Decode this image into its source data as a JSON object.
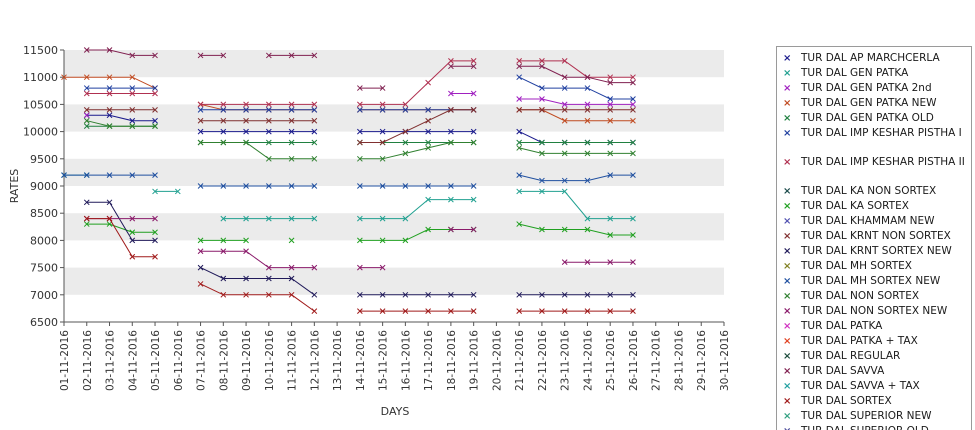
{
  "chart_data": {
    "type": "line",
    "title": "",
    "xlabel": "DAYS",
    "ylabel": "RATES",
    "ylim": [
      6500,
      11500
    ],
    "yticks": [
      "6500",
      "7000",
      "7500",
      "8000",
      "8500",
      "9000",
      "9500",
      "10000",
      "10500",
      "11000",
      "11500"
    ],
    "x": [
      "01-11-2016",
      "02-11-2016",
      "03-11-2016",
      "04-11-2016",
      "05-11-2016",
      "06-11-2016",
      "07-11-2016",
      "08-11-2016",
      "09-11-2016",
      "10-11-2016",
      "11-11-2016",
      "12-11-2016",
      "13-11-2016",
      "14-11-2016",
      "15-11-2016",
      "16-11-2016",
      "17-11-2016",
      "18-11-2016",
      "19-11-2016",
      "20-11-2016",
      "21-11-2016",
      "22-11-2016",
      "23-11-2016",
      "24-11-2016",
      "25-11-2016",
      "26-11-2016",
      "27-11-2016",
      "28-11-2016",
      "29-11-2016",
      "30-11-2016"
    ],
    "grid_bands": true,
    "legend_placement": "right",
    "series": [
      {
        "name": "TUR DAL AP MARCHCERLA",
        "color": "#1a1a8c",
        "values": [
          null,
          10300,
          10300,
          10200,
          10200,
          null,
          10000,
          10000,
          10000,
          10000,
          10000,
          10000,
          null,
          10000,
          10000,
          10000,
          10000,
          10000,
          10000,
          null,
          10000,
          9800,
          9800,
          9800,
          9800,
          9800,
          null,
          null,
          null,
          null
        ]
      },
      {
        "name": "TUR DAL GEN PATKA",
        "color": "#20a090",
        "values": [
          9200,
          9200,
          null,
          null,
          8900,
          8900,
          null,
          8400,
          8400,
          8400,
          8400,
          8400,
          null,
          8400,
          8400,
          8400,
          8750,
          8750,
          8750,
          null,
          8900,
          8900,
          8900,
          8400,
          8400,
          8400,
          null,
          null,
          null,
          null
        ]
      },
      {
        "name": "TUR DAL GEN PATKA 2nd",
        "color": "#a020c0",
        "values": [
          null,
          10300,
          null,
          null,
          null,
          null,
          null,
          null,
          null,
          null,
          null,
          null,
          null,
          null,
          null,
          null,
          null,
          10700,
          10700,
          null,
          10600,
          10600,
          10500,
          10500,
          10500,
          10500,
          null,
          null,
          null,
          null
        ]
      },
      {
        "name": "TUR DAL GEN PATKA NEW",
        "color": "#c04a20",
        "values": [
          11000,
          11000,
          11000,
          11000,
          10800,
          null,
          10500,
          10400,
          10400,
          10400,
          10400,
          10400,
          null,
          10400,
          10400,
          10400,
          10400,
          10400,
          10400,
          null,
          10400,
          10400,
          10200,
          10200,
          10200,
          10200,
          null,
          null,
          null,
          null
        ]
      },
      {
        "name": "TUR DAL GEN PATKA OLD",
        "color": "#208040",
        "values": [
          null,
          10100,
          10100,
          10100,
          10100,
          null,
          9800,
          9800,
          9800,
          9800,
          9800,
          9800,
          null,
          9800,
          9800,
          9800,
          9800,
          9800,
          9800,
          null,
          9800,
          9800,
          9800,
          9800,
          9800,
          9800,
          null,
          null,
          null,
          null
        ]
      },
      {
        "name": "TUR DAL IMP KESHAR PISTHA I",
        "color": "#2040a0",
        "values": [
          null,
          10800,
          10800,
          10800,
          10800,
          null,
          10400,
          10400,
          10400,
          10400,
          10400,
          10400,
          null,
          10400,
          10400,
          10400,
          10400,
          10400,
          10400,
          null,
          11000,
          10800,
          10800,
          10800,
          10600,
          10600,
          null,
          null,
          null,
          null
        ]
      },
      {
        "name": "TUR DAL IMP KESHAR PISTHA II",
        "color": "#b03050",
        "values": [
          null,
          10700,
          10700,
          10700,
          10700,
          null,
          10500,
          10500,
          10500,
          10500,
          10500,
          10500,
          null,
          10500,
          10500,
          10500,
          10900,
          11300,
          11300,
          null,
          11300,
          11300,
          11300,
          11000,
          11000,
          11000,
          null,
          null,
          null,
          null
        ]
      },
      {
        "name": "TUR DAL KA NON SORTEX",
        "color": "#1a4a4a",
        "values": [
          null,
          null,
          null,
          null,
          null,
          null,
          null,
          null,
          null,
          null,
          null,
          null,
          null,
          null,
          null,
          null,
          null,
          null,
          null,
          null,
          null,
          null,
          null,
          null,
          null,
          null,
          null,
          null,
          null,
          null
        ]
      },
      {
        "name": "TUR DAL KA SORTEX",
        "color": "#20a020",
        "values": [
          null,
          8300,
          8300,
          8150,
          8150,
          null,
          8000,
          8000,
          8000,
          null,
          8000,
          null,
          null,
          8000,
          8000,
          8000,
          8200,
          8200,
          8200,
          null,
          8300,
          8200,
          8200,
          8200,
          8100,
          8100,
          null,
          null,
          null,
          null
        ]
      },
      {
        "name": "TUR DAL KHAMMAM NEW",
        "color": "#5050b0",
        "values": [
          null,
          null,
          null,
          null,
          null,
          null,
          null,
          null,
          null,
          null,
          null,
          null,
          null,
          null,
          null,
          null,
          null,
          null,
          null,
          null,
          null,
          null,
          null,
          null,
          null,
          null,
          null,
          null,
          null,
          null
        ]
      },
      {
        "name": "TUR DAL KRNT NON SORTEX",
        "color": "#803030",
        "values": [
          null,
          10400,
          10400,
          10400,
          10400,
          null,
          10200,
          10200,
          10200,
          10200,
          10200,
          10200,
          null,
          9800,
          9800,
          10000,
          10200,
          10400,
          10400,
          null,
          10400,
          10400,
          10400,
          10400,
          10400,
          10400,
          null,
          null,
          null,
          null
        ]
      },
      {
        "name": "TUR DAL KRNT SORTEX NEW",
        "color": "#201a5a",
        "values": [
          null,
          8700,
          8700,
          8000,
          8000,
          null,
          7500,
          7300,
          7300,
          7300,
          7300,
          7000,
          null,
          7000,
          7000,
          7000,
          7000,
          7000,
          7000,
          null,
          7000,
          7000,
          7000,
          7000,
          7000,
          7000,
          null,
          null,
          null,
          null
        ]
      },
      {
        "name": "TUR DAL MH SORTEX",
        "color": "#808020",
        "values": [
          null,
          null,
          null,
          null,
          null,
          null,
          null,
          null,
          null,
          null,
          null,
          null,
          null,
          null,
          null,
          null,
          null,
          null,
          null,
          null,
          null,
          null,
          null,
          null,
          null,
          null,
          null,
          null,
          null,
          null
        ]
      },
      {
        "name": "TUR DAL MH SORTEX NEW",
        "color": "#2050a0",
        "values": [
          9200,
          9200,
          9200,
          9200,
          9200,
          null,
          9000,
          9000,
          9000,
          9000,
          9000,
          9000,
          null,
          9000,
          9000,
          9000,
          9000,
          9000,
          9000,
          null,
          9200,
          9100,
          9100,
          9100,
          9200,
          9200,
          null,
          null,
          null,
          null
        ]
      },
      {
        "name": "TUR DAL NON SORTEX",
        "color": "#308030",
        "values": [
          null,
          10200,
          10100,
          10100,
          10100,
          null,
          9800,
          9800,
          9800,
          9500,
          9500,
          9500,
          null,
          9500,
          9500,
          9600,
          9700,
          9800,
          9800,
          null,
          9700,
          9600,
          9600,
          9600,
          9600,
          9600,
          null,
          null,
          null,
          null
        ]
      },
      {
        "name": "TUR DAL NON SORTEX NEW",
        "color": "#8a1a6a",
        "values": [
          null,
          8400,
          8400,
          8400,
          8400,
          null,
          7800,
          7800,
          7800,
          7500,
          7500,
          7500,
          null,
          7500,
          7500,
          null,
          null,
          8200,
          8200,
          null,
          null,
          null,
          7600,
          7600,
          7600,
          7600,
          null,
          null,
          null,
          null
        ]
      },
      {
        "name": "TUR DAL PATKA",
        "color": "#d030c0",
        "values": [
          null,
          null,
          null,
          null,
          null,
          null,
          null,
          null,
          null,
          null,
          null,
          null,
          null,
          null,
          null,
          null,
          null,
          null,
          null,
          null,
          null,
          null,
          null,
          null,
          null,
          null,
          null,
          null,
          null,
          null
        ]
      },
      {
        "name": "TUR DAL PATKA + TAX",
        "color": "#e04020",
        "values": [
          null,
          null,
          null,
          null,
          null,
          null,
          null,
          null,
          null,
          null,
          null,
          null,
          null,
          null,
          null,
          null,
          null,
          null,
          null,
          null,
          null,
          null,
          null,
          null,
          null,
          null,
          null,
          null,
          null,
          null
        ]
      },
      {
        "name": "TUR DAL REGULAR",
        "color": "#1a4a3a",
        "values": [
          null,
          null,
          null,
          null,
          null,
          null,
          null,
          null,
          null,
          null,
          null,
          null,
          null,
          null,
          null,
          null,
          null,
          null,
          null,
          null,
          null,
          null,
          null,
          null,
          null,
          null,
          null,
          null,
          null,
          null
        ]
      },
      {
        "name": "TUR DAL SAVVA",
        "color": "#802050",
        "values": [
          null,
          11500,
          11500,
          11400,
          11400,
          null,
          11400,
          11400,
          null,
          11400,
          11400,
          11400,
          null,
          10800,
          10800,
          null,
          null,
          11200,
          11200,
          null,
          11200,
          11200,
          11000,
          11000,
          10900,
          10900,
          null,
          null,
          null,
          null
        ]
      },
      {
        "name": "TUR DAL SAVVA + TAX",
        "color": "#20a0a0",
        "values": [
          null,
          null,
          null,
          null,
          null,
          null,
          null,
          null,
          null,
          null,
          null,
          null,
          null,
          null,
          null,
          null,
          null,
          null,
          null,
          null,
          null,
          null,
          null,
          null,
          null,
          null,
          null,
          null,
          null,
          null
        ]
      },
      {
        "name": "TUR DAL SORTEX",
        "color": "#a01a1a",
        "values": [
          null,
          8400,
          8400,
          7700,
          7700,
          null,
          7200,
          7000,
          7000,
          7000,
          7000,
          6700,
          null,
          6700,
          6700,
          6700,
          6700,
          6700,
          6700,
          null,
          6700,
          6700,
          6700,
          6700,
          6700,
          6700,
          null,
          null,
          null,
          null
        ]
      },
      {
        "name": "TUR DAL SUPERIOR NEW",
        "color": "#30a080",
        "values": [
          null,
          null,
          null,
          null,
          null,
          null,
          null,
          null,
          null,
          null,
          null,
          null,
          null,
          null,
          null,
          null,
          null,
          null,
          null,
          null,
          null,
          null,
          null,
          null,
          null,
          null,
          null,
          null,
          null,
          null
        ]
      },
      {
        "name": "TUR DAL SUPERIOR OLD",
        "color": "#4a4a9a",
        "values": [
          null,
          null,
          null,
          null,
          null,
          null,
          null,
          null,
          null,
          null,
          null,
          null,
          null,
          null,
          null,
          null,
          null,
          null,
          null,
          null,
          null,
          null,
          null,
          null,
          null,
          null,
          null,
          null,
          null,
          null
        ]
      }
    ]
  }
}
